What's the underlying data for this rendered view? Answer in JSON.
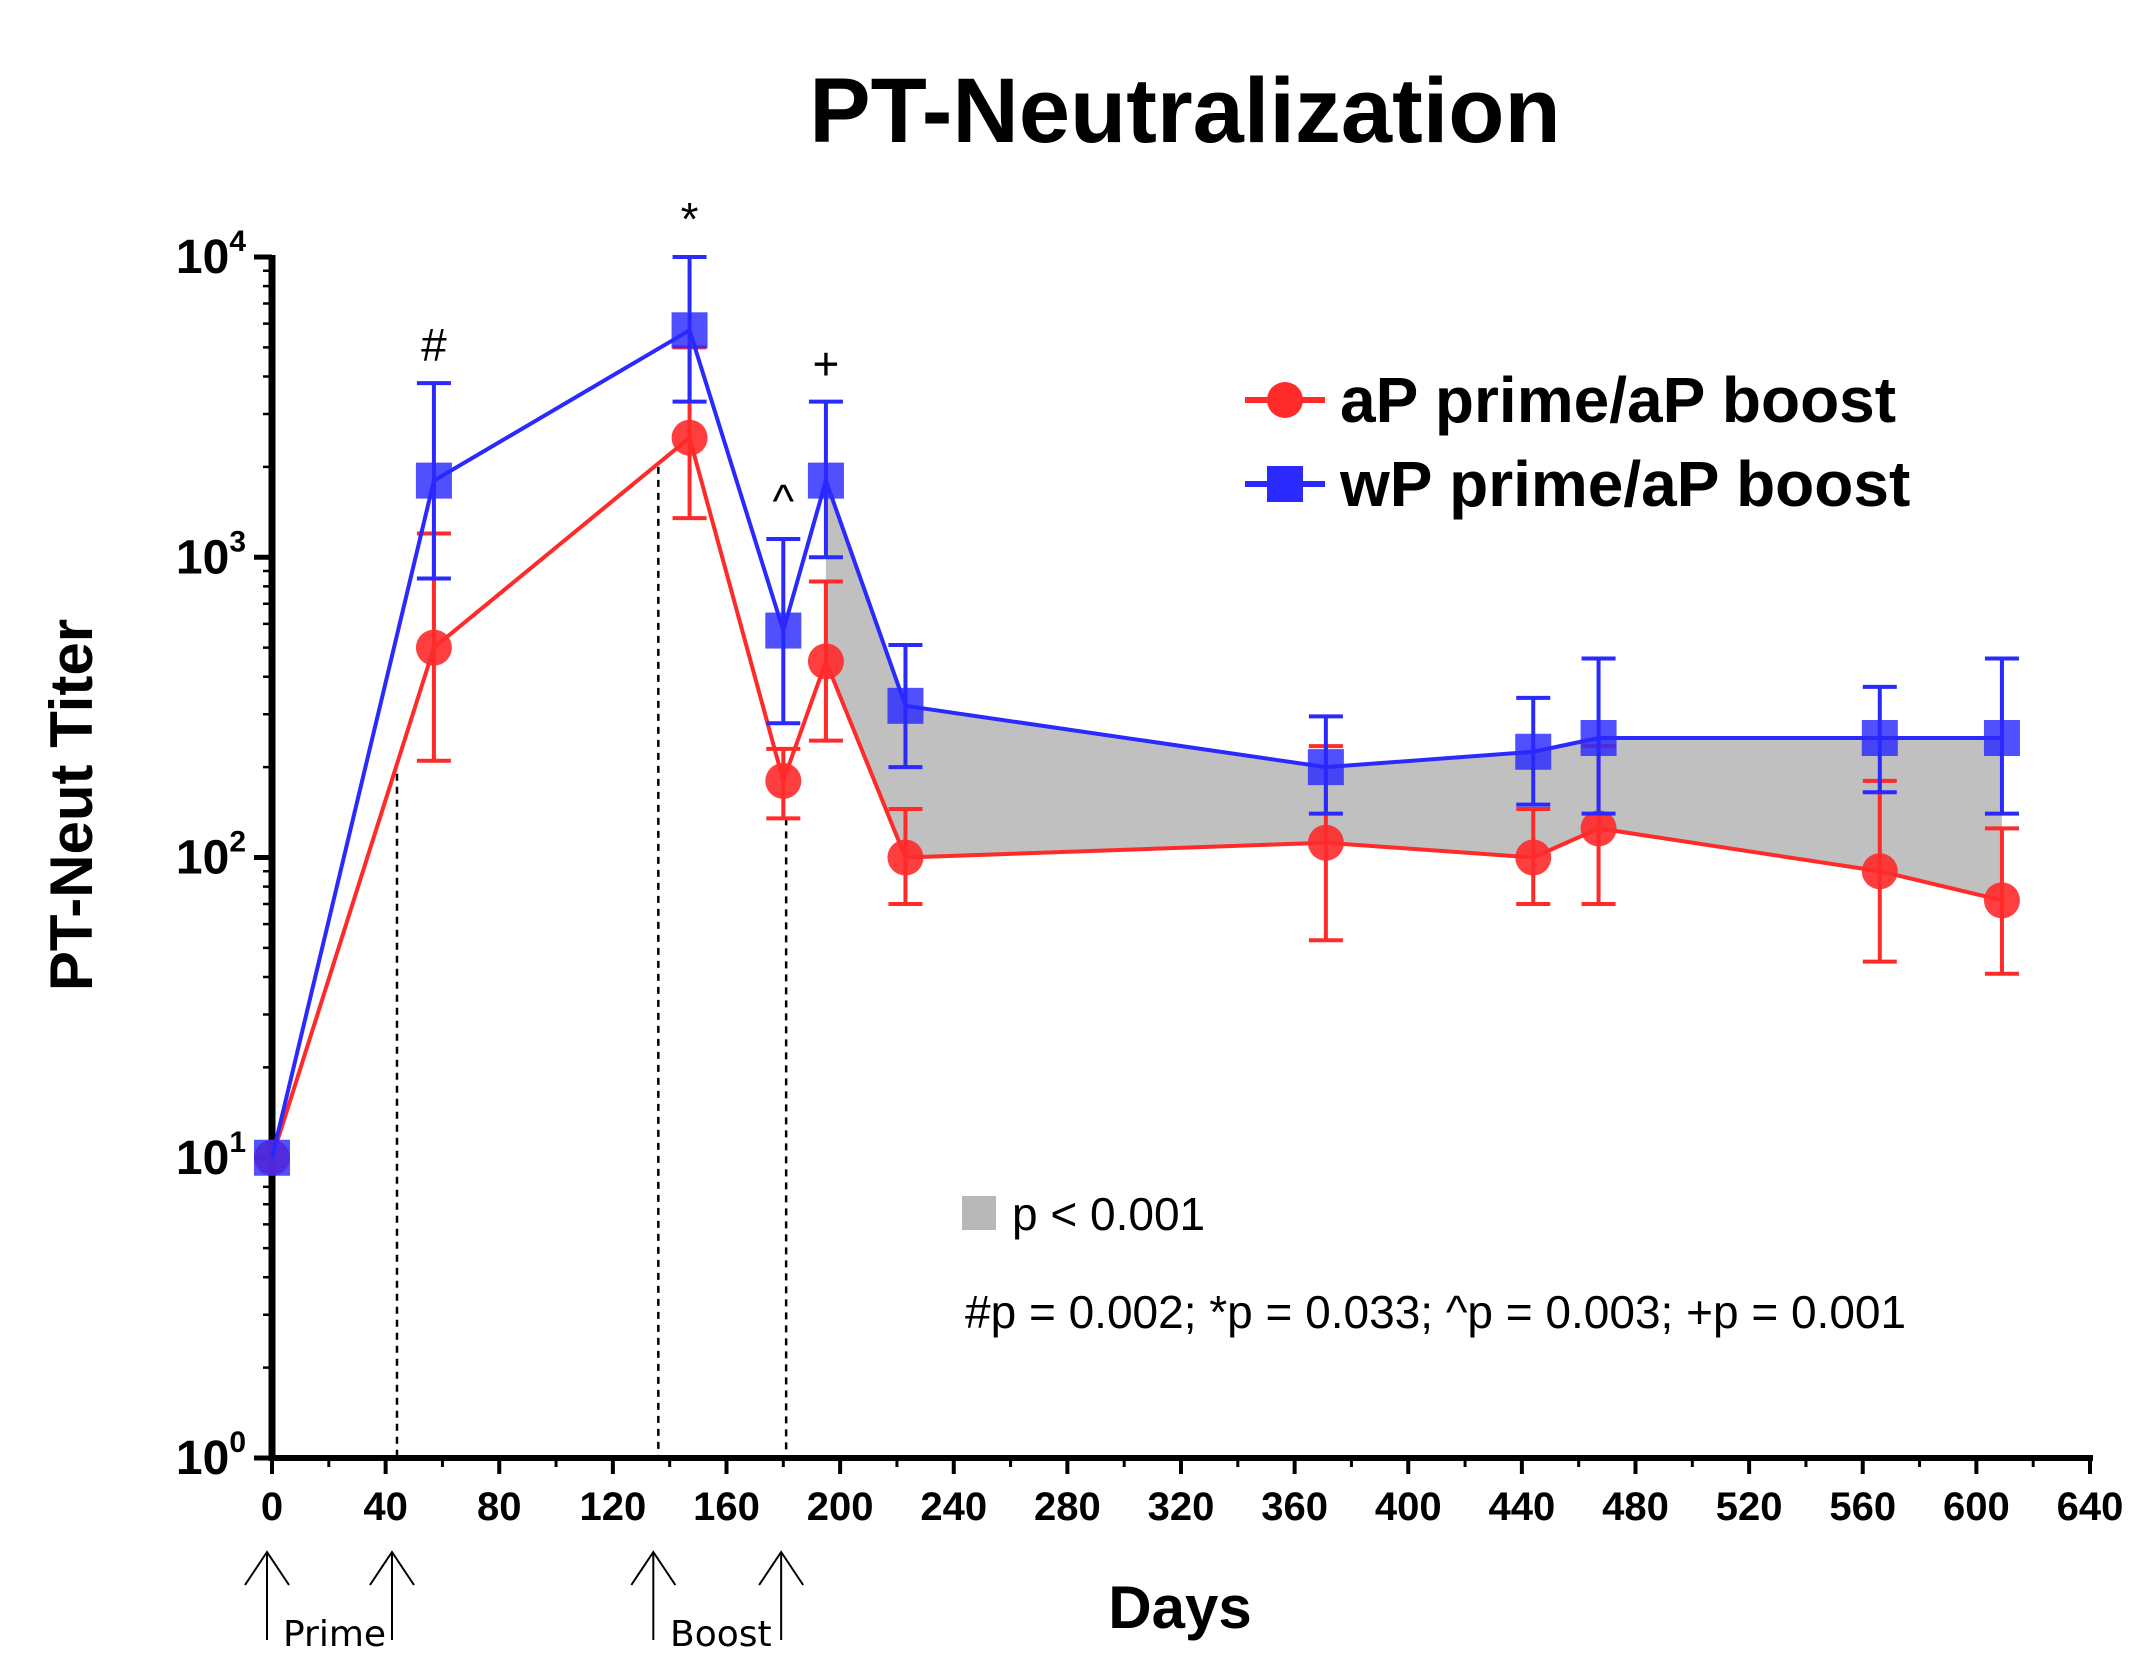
{
  "chart_data": {
    "type": "line",
    "title": "PT-Neutralization",
    "xlabel": "Days",
    "ylabel": "PT-Neut Titer",
    "xlim": [
      0,
      640
    ],
    "x_ticks": [
      0,
      40,
      80,
      120,
      160,
      200,
      240,
      280,
      320,
      360,
      400,
      440,
      480,
      520,
      560,
      600,
      640
    ],
    "y_scale": "log",
    "ylim": [
      1,
      10000
    ],
    "y_ticks": [
      {
        "base": "10",
        "exp": "0",
        "value": 1
      },
      {
        "base": "10",
        "exp": "1",
        "value": 10
      },
      {
        "base": "10",
        "exp": "2",
        "value": 100
      },
      {
        "base": "10",
        "exp": "3",
        "value": 1000
      },
      {
        "base": "10",
        "exp": "4",
        "value": 10000
      }
    ],
    "series": [
      {
        "name": "aP prime/aP boost",
        "color": "#ff2a2a",
        "marker": "circle",
        "points": [
          {
            "x": 0,
            "y": 10,
            "lo": 10,
            "hi": 10
          },
          {
            "x": 57,
            "y": 500,
            "lo": 210,
            "hi": 1200
          },
          {
            "x": 147,
            "y": 2500,
            "lo": 1350,
            "hi": 5000
          },
          {
            "x": 180,
            "y": 180,
            "lo": 135,
            "hi": 230
          },
          {
            "x": 195,
            "y": 450,
            "lo": 245,
            "hi": 830
          },
          {
            "x": 223,
            "y": 100,
            "lo": 70,
            "hi": 145
          },
          {
            "x": 371,
            "y": 112,
            "lo": 53,
            "hi": 235
          },
          {
            "x": 444,
            "y": 100,
            "lo": 70,
            "hi": 145
          },
          {
            "x": 467,
            "y": 125,
            "lo": 70,
            "hi": 235
          },
          {
            "x": 566,
            "y": 90,
            "lo": 45,
            "hi": 180
          },
          {
            "x": 609,
            "y": 72,
            "lo": 41,
            "hi": 125
          }
        ]
      },
      {
        "name": "wP prime/aP boost",
        "color": "#2a2aff",
        "marker": "square",
        "points": [
          {
            "x": 0,
            "y": 10,
            "lo": 10,
            "hi": 10
          },
          {
            "x": 57,
            "y": 1800,
            "lo": 850,
            "hi": 3800
          },
          {
            "x": 147,
            "y": 5700,
            "lo": 3300,
            "hi": 10000
          },
          {
            "x": 180,
            "y": 570,
            "lo": 280,
            "hi": 1150
          },
          {
            "x": 195,
            "y": 1800,
            "lo": 1000,
            "hi": 3300
          },
          {
            "x": 223,
            "y": 320,
            "lo": 200,
            "hi": 510
          },
          {
            "x": 371,
            "y": 200,
            "lo": 140,
            "hi": 295
          },
          {
            "x": 444,
            "y": 225,
            "lo": 150,
            "hi": 340
          },
          {
            "x": 467,
            "y": 250,
            "lo": 140,
            "hi": 460
          },
          {
            "x": 566,
            "y": 250,
            "lo": 165,
            "hi": 370
          },
          {
            "x": 609,
            "y": 250,
            "lo": 140,
            "hi": 460
          }
        ]
      }
    ],
    "shaded_region": {
      "description": "p < 0.001",
      "x_from": 195,
      "x_to": 609,
      "color": "#c0c0c0"
    },
    "significance_marks": [
      {
        "symbol": "#",
        "x": 57,
        "above": 3800
      },
      {
        "symbol": "*",
        "x": 147,
        "above": 10000
      },
      {
        "symbol": "^",
        "x": 180,
        "above": 1150
      },
      {
        "symbol": "+",
        "x": 195,
        "above": 3300
      }
    ],
    "event_lines": [
      {
        "x": 44,
        "from_y": 190
      },
      {
        "x": 136,
        "from_y": 2000
      },
      {
        "x": 181,
        "from_y": 135
      }
    ],
    "event_arrows": [
      0,
      44,
      136,
      181
    ],
    "event_labels": [
      {
        "text": "Prime",
        "x": 22
      },
      {
        "text": "Boost",
        "x": 158
      }
    ],
    "legend": {
      "placement": "top-right"
    },
    "annotations": {
      "shade_legend": "p < 0.001",
      "pvalues": "#p = 0.002; *p = 0.033; ^p = 0.003; +p = 0.001"
    }
  }
}
